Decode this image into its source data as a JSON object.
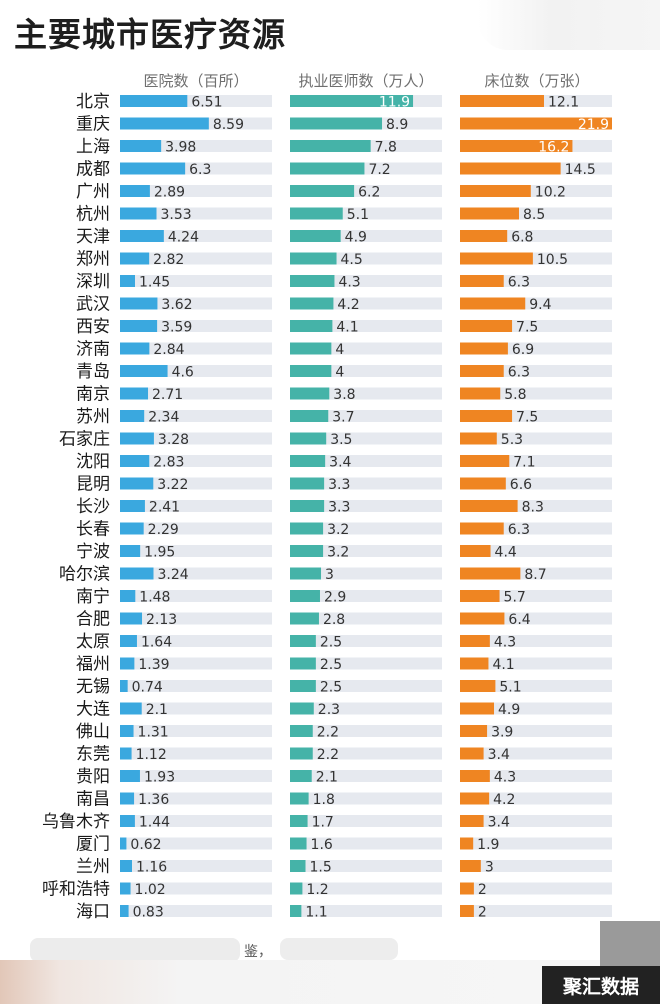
{
  "title": "主要城市医疗资源",
  "footer": {
    "visible_text": "鉴，"
  },
  "watermark": {
    "text": "聚汇数据"
  },
  "colors": {
    "hospitals": "#3aa8df",
    "doctors": "#45b3a8",
    "beds": "#ef8522",
    "track": "#e6e9ef"
  },
  "chart_data": {
    "type": "bar",
    "orientation": "horizontal",
    "categories": [
      "北京",
      "重庆",
      "上海",
      "成都",
      "广州",
      "杭州",
      "天津",
      "郑州",
      "深圳",
      "武汉",
      "西安",
      "济南",
      "青岛",
      "南京",
      "苏州",
      "石家庄",
      "沈阳",
      "昆明",
      "长沙",
      "长春",
      "宁波",
      "哈尔滨",
      "南宁",
      "合肥",
      "太原",
      "福州",
      "无锡",
      "大连",
      "佛山",
      "东莞",
      "贵阳",
      "南昌",
      "乌鲁木齐",
      "厦门",
      "兰州",
      "呼和浩特",
      "海口"
    ],
    "series": [
      {
        "name": "医院数（百所）",
        "color": "#3aa8df",
        "values": [
          6.51,
          8.59,
          3.98,
          6.3,
          2.89,
          3.53,
          4.24,
          2.82,
          1.45,
          3.62,
          3.59,
          2.84,
          4.6,
          2.71,
          2.34,
          3.28,
          2.83,
          3.22,
          2.41,
          2.29,
          1.95,
          3.24,
          1.48,
          2.13,
          1.64,
          1.39,
          0.74,
          2.1,
          1.31,
          1.12,
          1.93,
          1.36,
          1.44,
          0.62,
          1.16,
          1.02,
          0.83
        ],
        "labels": [
          "6.51",
          "8.59",
          "3.98",
          "6.3",
          "2.89",
          "3.53",
          "4.24",
          "2.82",
          "1.45",
          "3.62",
          "3.59",
          "2.84",
          "4.6",
          "2.71",
          "2.34",
          "3.28",
          "2.83",
          "3.22",
          "2.41",
          "2.29",
          "1.95",
          "3.24",
          "1.48",
          "2.13",
          "1.64",
          "1.39",
          "0.74",
          "2.1",
          "1.31",
          "1.12",
          "1.93",
          "1.36",
          "1.44",
          "0.62",
          "1.16",
          "1.02",
          "0.83"
        ],
        "max": 14.7
      },
      {
        "name": "执业医师数（万人）",
        "color": "#45b3a8",
        "values": [
          11.9,
          8.9,
          7.8,
          7.2,
          6.2,
          5.1,
          4.9,
          4.5,
          4.3,
          4.2,
          4.1,
          4,
          4,
          3.8,
          3.7,
          3.5,
          3.4,
          3.3,
          3.3,
          3.2,
          3.2,
          3,
          2.9,
          2.8,
          2.5,
          2.5,
          2.5,
          2.3,
          2.2,
          2.2,
          2.1,
          1.8,
          1.7,
          1.6,
          1.5,
          1.2,
          1.1
        ],
        "labels": [
          "11.9",
          "8.9",
          "7.8",
          "7.2",
          "6.2",
          "5.1",
          "4.9",
          "4.5",
          "4.3",
          "4.2",
          "4.1",
          "4",
          "4",
          "3.8",
          "3.7",
          "3.5",
          "3.4",
          "3.3",
          "3.3",
          "3.2",
          "3.2",
          "3",
          "2.9",
          "2.8",
          "2.5",
          "2.5",
          "2.5",
          "2.3",
          "2.2",
          "2.2",
          "2.1",
          "1.8",
          "1.7",
          "1.6",
          "1.5",
          "1.2",
          "1.1"
        ],
        "max": 14.7
      },
      {
        "name": "床位数（万张）",
        "color": "#ef8522",
        "values": [
          12.1,
          21.9,
          16.2,
          14.5,
          10.2,
          8.5,
          6.8,
          10.5,
          6.3,
          9.4,
          7.5,
          6.9,
          6.3,
          5.8,
          7.5,
          5.3,
          7.1,
          6.6,
          8.3,
          6.3,
          4.4,
          8.7,
          5.7,
          6.4,
          4.3,
          4.1,
          5.1,
          4.9,
          3.9,
          3.4,
          4.3,
          4.2,
          3.4,
          1.9,
          3,
          2,
          2
        ],
        "labels": [
          "12.1",
          "21.9",
          "16.2",
          "14.5",
          "10.2",
          "8.5",
          "6.8",
          "10.5",
          "6.3",
          "9.4",
          "7.5",
          "6.9",
          "6.3",
          "5.8",
          "7.5",
          "5.3",
          "7.1",
          "6.6",
          "8.3",
          "6.3",
          "4.4",
          "8.7",
          "5.7",
          "6.4",
          "4.3",
          "4.1",
          "5.1",
          "4.9",
          "3.9",
          "3.4",
          "4.3",
          "4.2",
          "3.4",
          "1.9",
          "3",
          "2",
          "2"
        ],
        "max": 21.9
      }
    ],
    "xlabel": "",
    "ylabel": "",
    "grid": false,
    "legend": "column-headers"
  }
}
